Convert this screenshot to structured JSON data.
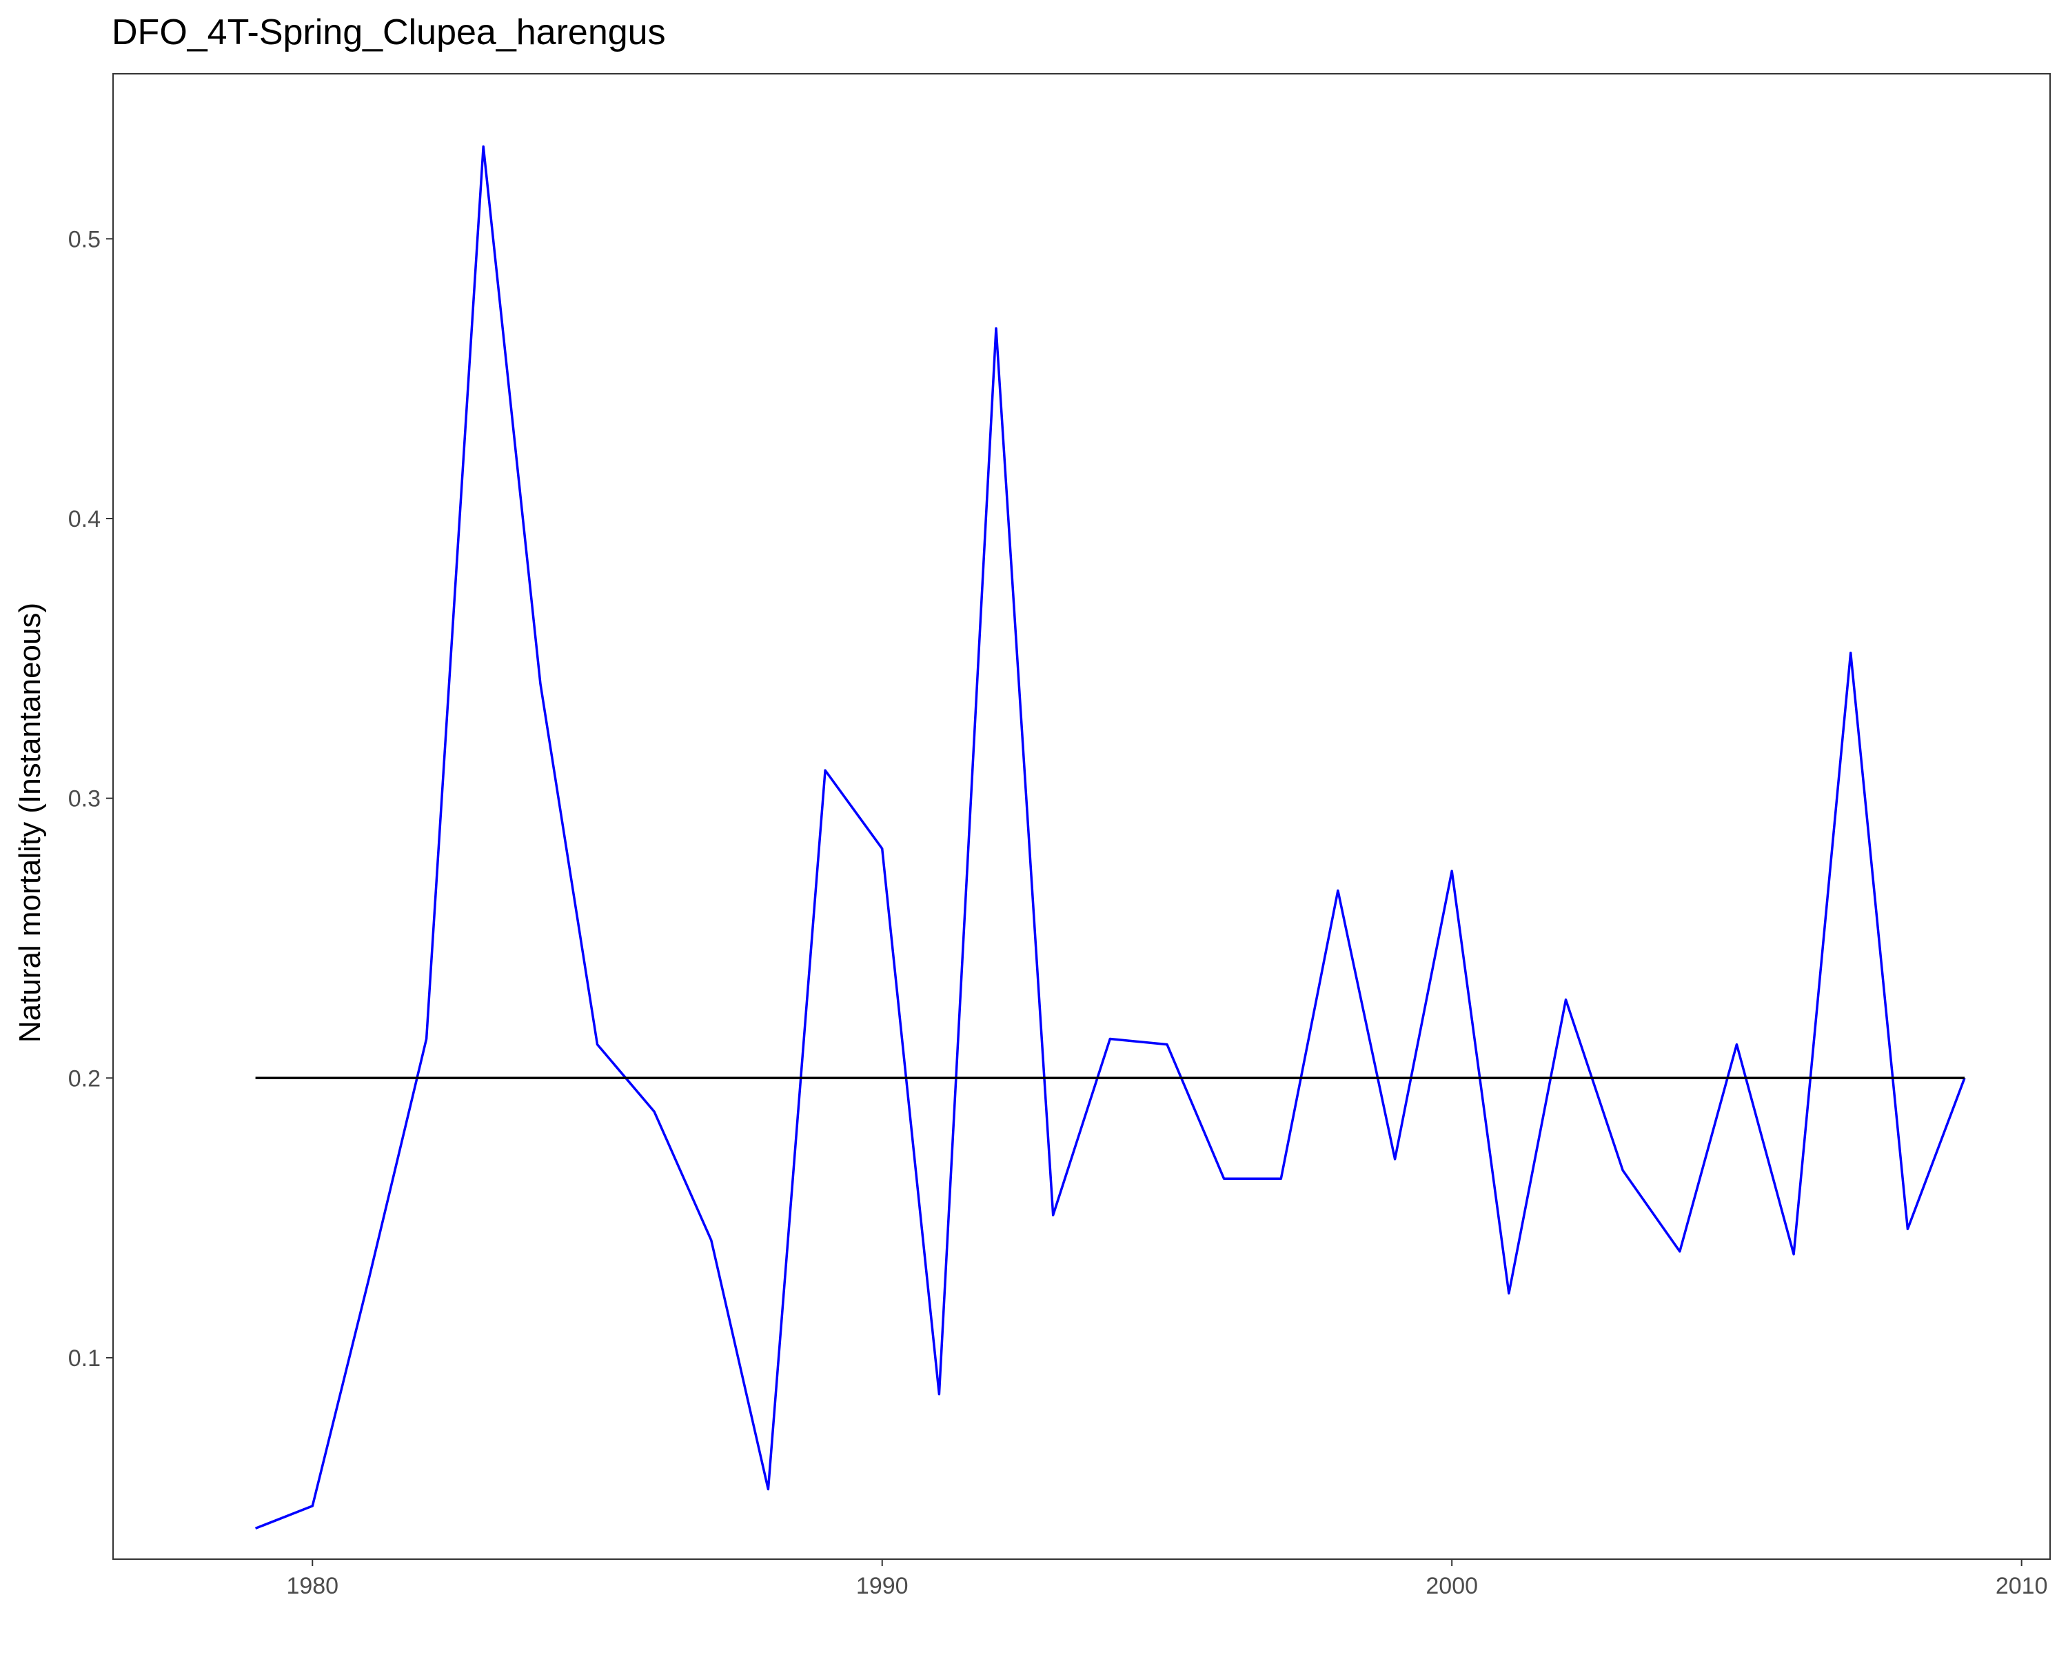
{
  "chart_data": {
    "type": "line",
    "title": "DFO_4T-Spring_Clupea_harengus",
    "xlabel": "",
    "ylabel": "Natural mortality (Instantaneous)",
    "xlim": [
      1976.5,
      2010.5
    ],
    "ylim": [
      0.028,
      0.559
    ],
    "x_ticks": [
      1980,
      1990,
      2000,
      2010
    ],
    "y_ticks": [
      0.1,
      0.2,
      0.3,
      0.4,
      0.5
    ],
    "x_tick_labels": [
      "1980",
      "1990",
      "2000",
      "2010"
    ],
    "y_tick_labels": [
      "0.1",
      "0.2",
      "0.3",
      "0.4",
      "0.5"
    ],
    "grid": false,
    "series": [
      {
        "color": "#0000ff",
        "x": [
          1979,
          1980,
          1981,
          1982,
          1983,
          1984,
          1985,
          1986,
          1987,
          1988,
          1989,
          1990,
          1991,
          1992,
          1993,
          1994,
          1995,
          1996,
          1997,
          1998,
          1999,
          2000,
          2001,
          2002,
          2003,
          2004,
          2005,
          2006,
          2007,
          2008,
          2009
        ],
        "values": [
          0.039,
          0.047,
          0.129,
          0.214,
          0.533,
          0.341,
          0.212,
          0.188,
          0.142,
          0.053,
          0.31,
          0.282,
          0.087,
          0.468,
          0.151,
          0.214,
          0.212,
          0.164,
          0.164,
          0.267,
          0.171,
          0.274,
          0.123,
          0.228,
          0.167,
          0.138,
          0.212,
          0.137,
          0.352,
          0.146,
          0.2
        ]
      },
      {
        "color": "#000000",
        "x": [
          1979,
          2009
        ],
        "values": [
          0.2,
          0.2
        ]
      }
    ]
  }
}
